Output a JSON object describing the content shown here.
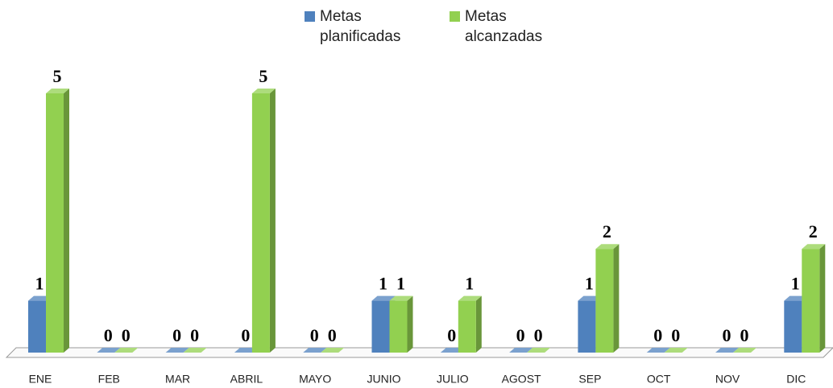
{
  "chart_data": {
    "type": "bar3d",
    "categories": [
      "ENE",
      "FEB",
      "MAR",
      "ABRIL",
      "MAYO",
      "JUNIO",
      "JULIO",
      "AGOST",
      "SEP",
      "OCT",
      "NOV",
      "DIC"
    ],
    "series": [
      {
        "name": "Metas planificadas",
        "color": "#4f81bd",
        "values": [
          1,
          0,
          0,
          0,
          0,
          1,
          0,
          0,
          1,
          0,
          0,
          1
        ]
      },
      {
        "name": "Metas alcanzadas",
        "color": "#92d050",
        "values": [
          5,
          0,
          0,
          5,
          0,
          1,
          1,
          0,
          2,
          0,
          0,
          2
        ]
      }
    ],
    "ylim": [
      0,
      5
    ],
    "legend": "top"
  }
}
